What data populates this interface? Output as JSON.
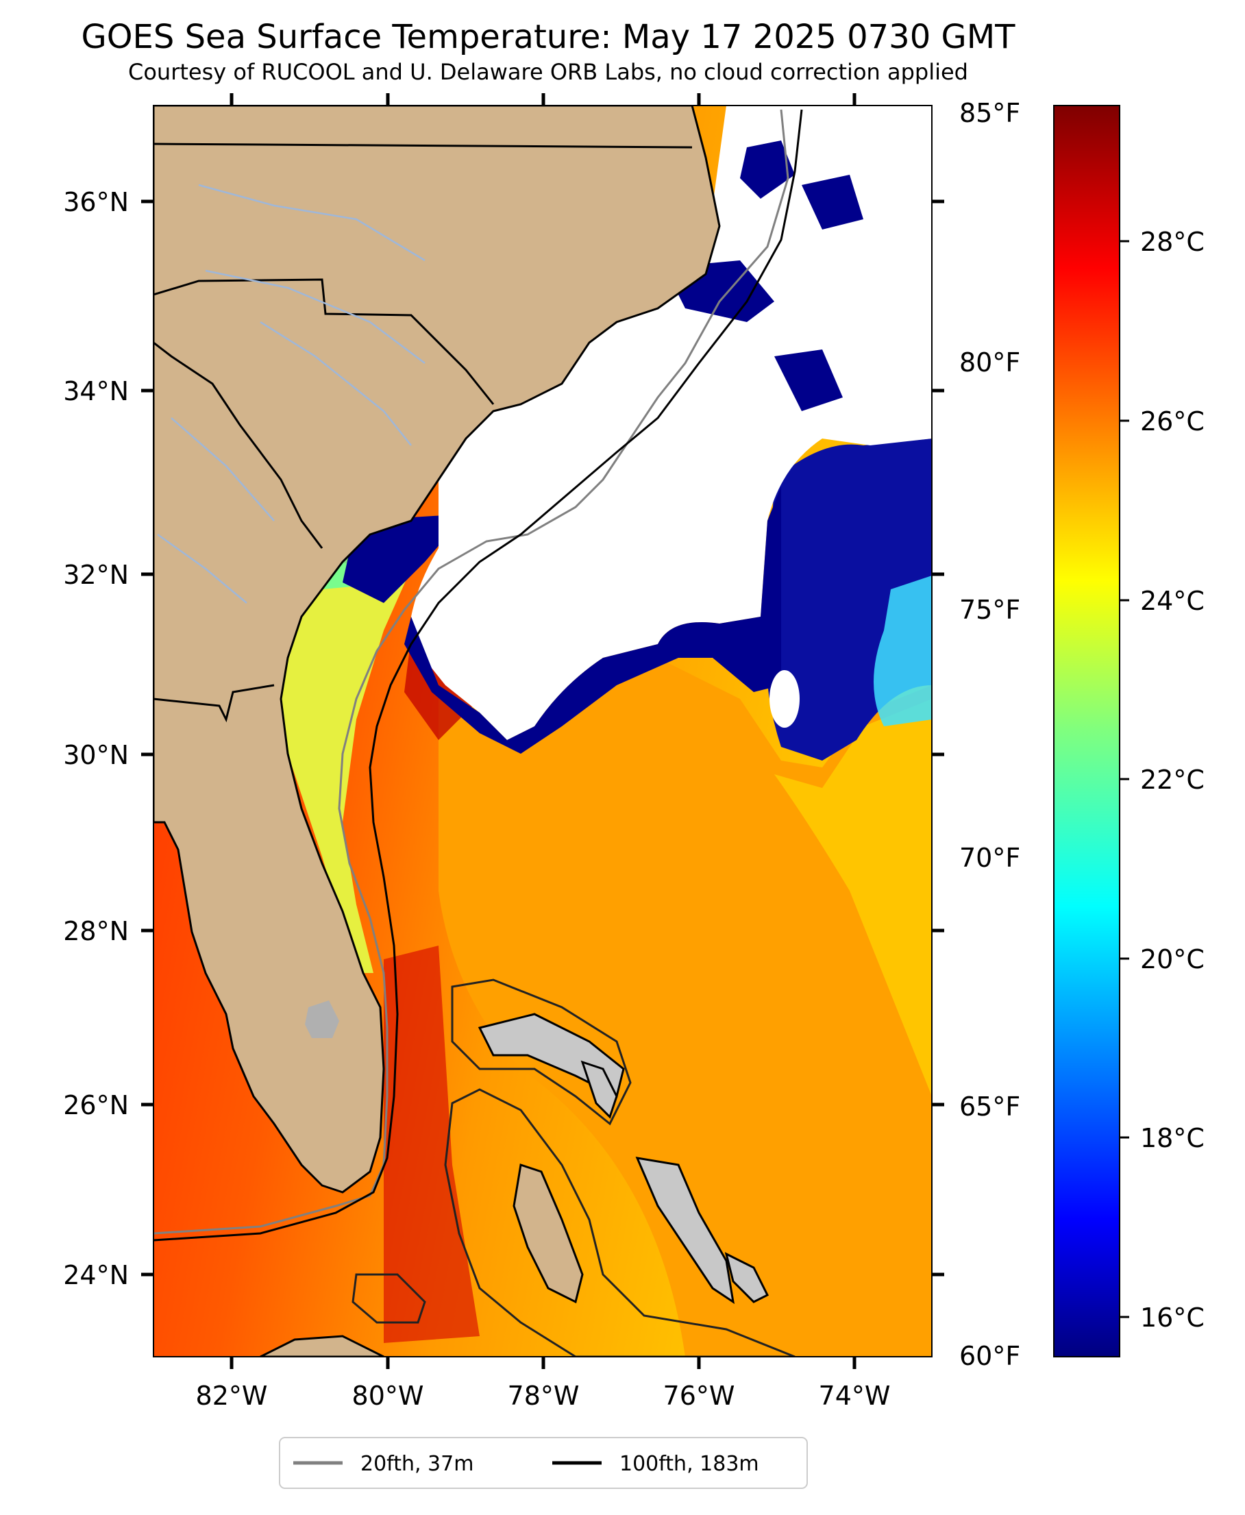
{
  "title": "GOES Sea Surface Temperature: May 17 2025 0730 GMT",
  "subtitle": "Courtesy of RUCOOL and U. Delaware ORB Labs, no cloud correction applied",
  "map": {
    "lon_range": [
      -83,
      -73
    ],
    "lat_range": [
      23.1,
      37.1
    ],
    "lon_ticks": [
      "82°W",
      "80°W",
      "78°W",
      "76°W",
      "74°W"
    ],
    "lat_ticks": [
      "36°N",
      "34°N",
      "32°N",
      "30°N",
      "28°N",
      "26°N",
      "24°N"
    ],
    "right_ticks_f": [
      "85°F",
      "80°F",
      "75°F",
      "70°F",
      "65°F",
      "60°F"
    ],
    "colors": {
      "land": "#d2b48c",
      "cloud": "#ffffff",
      "cold_sst": "#00008b",
      "gulf_stream": "#cc0000"
    }
  },
  "colorbar": {
    "colormap": "jet",
    "range_c": [
      15.6,
      29.4
    ],
    "celsius_ticks": [
      "28°C",
      "26°C",
      "24°C",
      "22°C",
      "20°C",
      "18°C",
      "16°C"
    ]
  },
  "legend": {
    "items": [
      {
        "label": "20fth, 37m",
        "color": "#808080"
      },
      {
        "label": "100fth, 183m",
        "color": "#000000"
      }
    ]
  }
}
